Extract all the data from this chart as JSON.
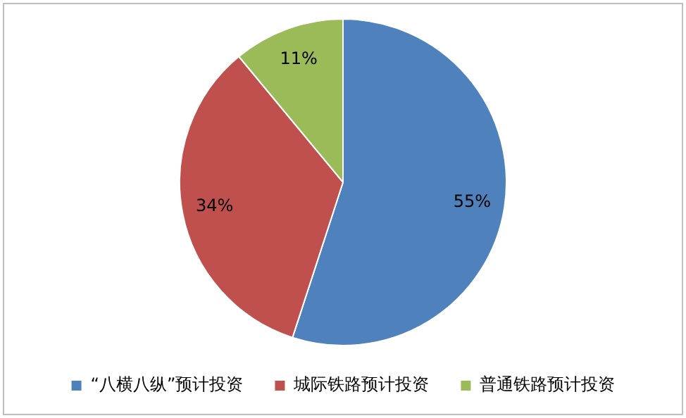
{
  "chart_data": {
    "type": "pie",
    "categories": [
      "“八横八纵”预计投资",
      "城际铁路预计投资",
      "普通铁路预计投资"
    ],
    "values": [
      55,
      34,
      11
    ],
    "colors": [
      "#4f81bd",
      "#c0504d",
      "#9bbb59"
    ],
    "value_labels": [
      "55%",
      "34%",
      "11%"
    ],
    "legend": "bottom"
  }
}
